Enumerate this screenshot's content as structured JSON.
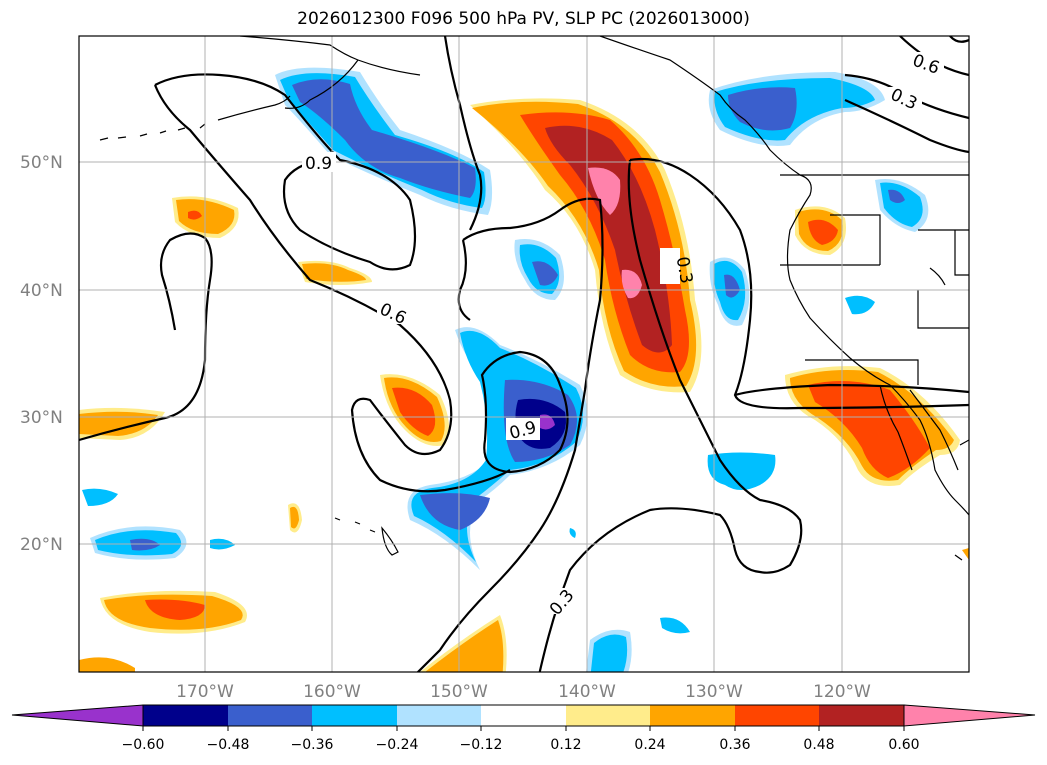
{
  "title": "2026012300 F096 500 hPa PV, SLP PC (2026013000)",
  "map": {
    "lat_labels": [
      "50°N",
      "40°N",
      "30°N",
      "20°N"
    ],
    "lon_labels": [
      "170°W",
      "160°W",
      "150°W",
      "140°W",
      "130°W",
      "120°W"
    ],
    "contour_labels": [
      "0.9",
      "0.6",
      "0.3",
      "0.9",
      "0.3",
      "0.6",
      "0.3"
    ],
    "colors": {
      "neg_060": "#9932cc",
      "neg_048": "#00008b",
      "neg_036": "#3a5fcd",
      "neg_024": "#00bfff",
      "neg_012": "#b0e2ff",
      "zero": "#ffffff",
      "pos_012": "#ffec8b",
      "pos_024": "#ffa500",
      "pos_036": "#ff4500",
      "pos_048": "#b22222",
      "pos_060": "#ff82ab"
    }
  },
  "colorbar": {
    "ticks": [
      "−0.60",
      "−0.48",
      "−0.36",
      "−0.24",
      "−0.12",
      "0.12",
      "0.24",
      "0.36",
      "0.48",
      "0.60"
    ]
  }
}
